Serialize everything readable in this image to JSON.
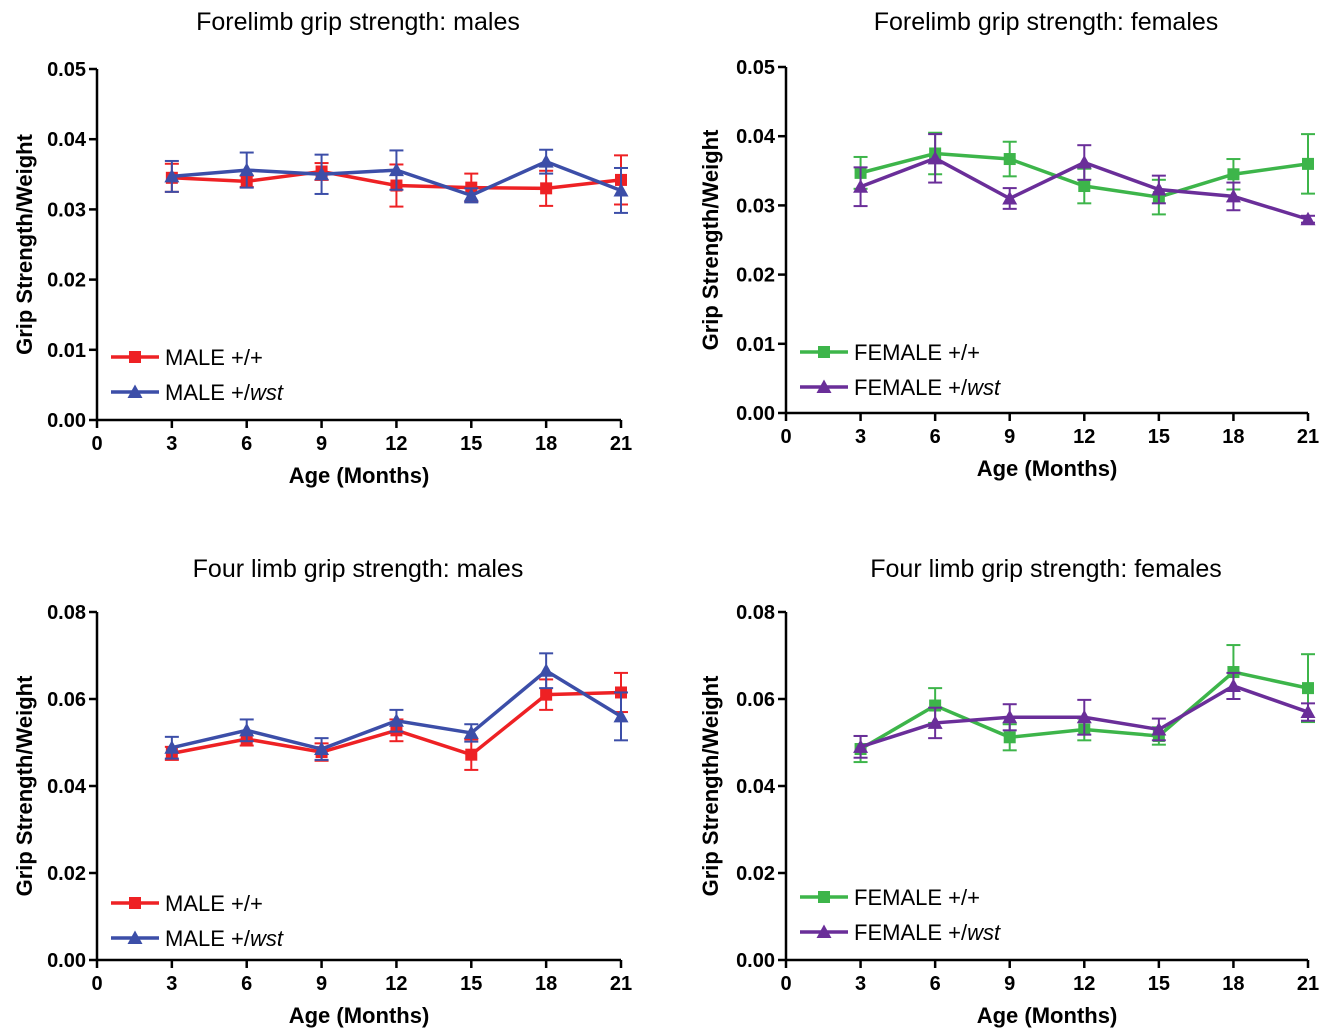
{
  "chart_data": [
    {
      "type": "line",
      "title": "Forelimb grip strength: males",
      "xlabel": "Age (Months)",
      "ylabel": "Grip Strength/Weight",
      "xlim": [
        0,
        21
      ],
      "ylim": [
        0,
        0.05
      ],
      "xticks": [
        "0",
        "3",
        "6",
        "9",
        "12",
        "15",
        "18",
        "21"
      ],
      "yticks": [
        "0.00",
        "0.01",
        "0.02",
        "0.03",
        "0.04",
        "0.05"
      ],
      "x": [
        3,
        6,
        9,
        12,
        15,
        18,
        21
      ],
      "legend": "bottom-left",
      "series": [
        {
          "name": "MALE +/+",
          "name_prefix": "MALE +/",
          "name_suffix": "+",
          "marker": "square",
          "color": "#ee2124",
          "values": [
            0.0345,
            0.034,
            0.0354,
            0.0334,
            0.0331,
            0.033,
            0.0342
          ],
          "errors": [
            0.002,
            0.0008,
            0.0012,
            0.003,
            0.002,
            0.0025,
            0.0035
          ]
        },
        {
          "name": "MALE +/wst",
          "name_prefix": "MALE +/",
          "name_suffix": "wst",
          "marker": "triangle",
          "color": "#3c4ea8",
          "values": [
            0.0347,
            0.0356,
            0.035,
            0.0356,
            0.032,
            0.0368,
            0.0327
          ],
          "errors": [
            0.0022,
            0.0025,
            0.0028,
            0.0028,
            0.001,
            0.0017,
            0.0032
          ]
        }
      ]
    },
    {
      "type": "line",
      "title": "Forelimb grip strength: females",
      "xlabel": "Age (Months)",
      "ylabel": "Grip Strength/Weight",
      "xlim": [
        0,
        21
      ],
      "ylim": [
        0,
        0.05
      ],
      "xticks": [
        "0",
        "3",
        "6",
        "9",
        "12",
        "15",
        "18",
        "21"
      ],
      "yticks": [
        "0.00",
        "0.01",
        "0.02",
        "0.03",
        "0.04",
        "0.05"
      ],
      "x": [
        3,
        6,
        9,
        12,
        15,
        18,
        21
      ],
      "legend": "bottom-left",
      "series": [
        {
          "name": "FEMALE +/+",
          "name_prefix": "FEMALE +/",
          "name_suffix": "+",
          "marker": "square",
          "color": "#3db54a",
          "values": [
            0.0347,
            0.0375,
            0.0367,
            0.0328,
            0.0312,
            0.0345,
            0.036
          ],
          "errors": [
            0.0023,
            0.003,
            0.0025,
            0.0025,
            0.0025,
            0.0022,
            0.0043
          ]
        },
        {
          "name": "FEMALE +/wst",
          "name_prefix": "FEMALE +/",
          "name_suffix": "wst",
          "marker": "triangle",
          "color": "#6a2e99",
          "values": [
            0.0327,
            0.0368,
            0.031,
            0.0362,
            0.0323,
            0.0313,
            0.028
          ],
          "errors": [
            0.0028,
            0.0035,
            0.0015,
            0.0025,
            0.002,
            0.002,
            0.0005
          ]
        }
      ]
    },
    {
      "type": "line",
      "title": "Four limb grip strength: males",
      "xlabel": "Age (Months)",
      "ylabel": "Grip Strength/Weight",
      "xlim": [
        0,
        21
      ],
      "ylim": [
        0,
        0.08
      ],
      "xticks": [
        "0",
        "3",
        "6",
        "9",
        "12",
        "15",
        "18",
        "21"
      ],
      "yticks": [
        "0.00",
        "0.02",
        "0.04",
        "0.06",
        "0.08"
      ],
      "x": [
        3,
        6,
        9,
        12,
        15,
        18,
        21
      ],
      "legend": "bottom-left",
      "series": [
        {
          "name": "MALE +/+",
          "name_prefix": "MALE +/",
          "name_suffix": "+",
          "marker": "square",
          "color": "#ee2124",
          "values": [
            0.0475,
            0.0508,
            0.0478,
            0.0528,
            0.0472,
            0.061,
            0.0615
          ],
          "errors": [
            0.0015,
            0.0015,
            0.002,
            0.0025,
            0.0035,
            0.0035,
            0.0045
          ]
        },
        {
          "name": "MALE +/wst",
          "name_prefix": "MALE +/",
          "name_suffix": "wst",
          "marker": "triangle",
          "color": "#3c4ea8",
          "values": [
            0.0488,
            0.0528,
            0.0485,
            0.055,
            0.0522,
            0.0665,
            0.056
          ],
          "errors": [
            0.0025,
            0.0025,
            0.0025,
            0.0025,
            0.002,
            0.004,
            0.0055
          ]
        }
      ]
    },
    {
      "type": "line",
      "title": "Four limb grip strength: females",
      "xlabel": "Age (Months)",
      "ylabel": "Grip Strength/Weight",
      "xlim": [
        0,
        21
      ],
      "ylim": [
        0,
        0.08
      ],
      "xticks": [
        "0",
        "3",
        "6",
        "9",
        "12",
        "15",
        "18",
        "21"
      ],
      "yticks": [
        "0.00",
        "0.02",
        "0.04",
        "0.06",
        "0.08"
      ],
      "x": [
        3,
        6,
        9,
        12,
        15,
        18,
        21
      ],
      "legend": "bottom-left",
      "series": [
        {
          "name": "FEMALE +/+",
          "name_prefix": "FEMALE +/",
          "name_suffix": "+",
          "marker": "square",
          "color": "#3db54a",
          "values": [
            0.0485,
            0.0585,
            0.0512,
            0.053,
            0.0515,
            0.0662,
            0.0625
          ],
          "errors": [
            0.003,
            0.004,
            0.003,
            0.0025,
            0.002,
            0.0062,
            0.0078
          ]
        },
        {
          "name": "FEMALE +/wst",
          "name_prefix": "FEMALE +/",
          "name_suffix": "wst",
          "marker": "triangle",
          "color": "#6a2e99",
          "values": [
            0.049,
            0.0545,
            0.0558,
            0.0558,
            0.053,
            0.063,
            0.057
          ],
          "errors": [
            0.0025,
            0.0035,
            0.003,
            0.004,
            0.0025,
            0.003,
            0.002
          ]
        }
      ]
    }
  ]
}
